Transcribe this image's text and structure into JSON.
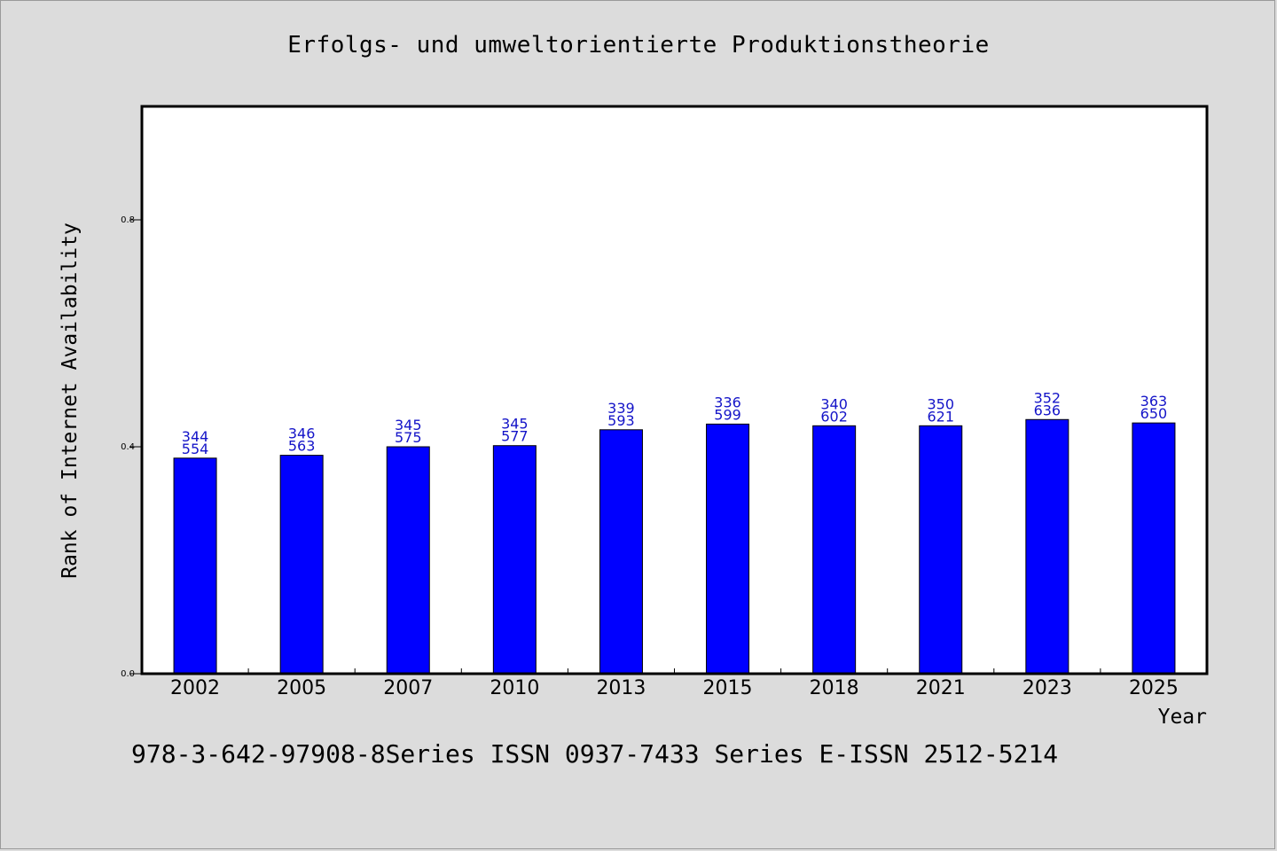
{
  "title": "Erfolgs- und umweltorientierte Produktionstheorie",
  "footer": "978-3-642-97908-8Series ISSN 0937-7433 Series E-ISSN 2512-5214",
  "chart_data": {
    "type": "bar",
    "title": "Erfolgs- und umweltorientierte Produktionstheorie",
    "xlabel": "Year",
    "ylabel": "Rank of Internet Availability",
    "categories": [
      "2002",
      "2005",
      "2007",
      "2010",
      "2013",
      "2015",
      "2018",
      "2021",
      "2023",
      "2025"
    ],
    "values": [
      0.38,
      0.385,
      0.4,
      0.402,
      0.43,
      0.44,
      0.437,
      0.437,
      0.448,
      0.442
    ],
    "data_labels_top": [
      "344",
      "346",
      "345",
      "345",
      "339",
      "336",
      "340",
      "350",
      "352",
      "363"
    ],
    "data_labels_bottom": [
      "554",
      "563",
      "575",
      "577",
      "593",
      "599",
      "602",
      "621",
      "636",
      "650"
    ],
    "ylim": [
      0,
      1.0
    ],
    "yticks": [
      0.0,
      0.4,
      0.8
    ],
    "ytick_labels": [
      "0.0",
      "0.4",
      "0.8"
    ],
    "grid": false,
    "legend": "none",
    "bar_color": "#0000ff",
    "label_color": "#1414c8",
    "plot_background": "#ffffff",
    "figure_background": "#dcdcdc"
  }
}
